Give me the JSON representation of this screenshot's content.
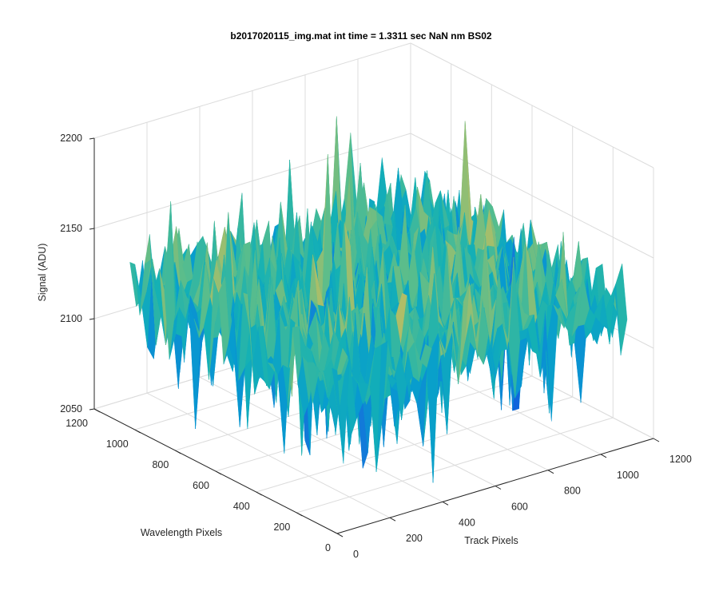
{
  "chart_data": {
    "type": "surface",
    "title": "b2017020115_img.mat int time = 1.3311 sec  NaN nm BS02",
    "xlabel": "Track Pixels",
    "ylabel": "Wavelength Pixels",
    "zlabel": "Signal (ADU)",
    "xlim": [
      0,
      1200
    ],
    "ylim": [
      0,
      1200
    ],
    "zlim": [
      2050,
      2200
    ],
    "x_ticks": [
      0,
      200,
      400,
      600,
      800,
      1000,
      1200
    ],
    "y_ticks": [
      0,
      200,
      400,
      600,
      800,
      1000,
      1200
    ],
    "z_ticks": [
      2050,
      2100,
      2150,
      2200
    ],
    "data_extent": {
      "x": [
        0,
        1100
      ],
      "y": [
        0,
        1024
      ]
    },
    "signal_range": [
      2060,
      2195
    ],
    "signal_mean": 2127,
    "colormap": "parula",
    "grid": true,
    "box": "back planes"
  }
}
